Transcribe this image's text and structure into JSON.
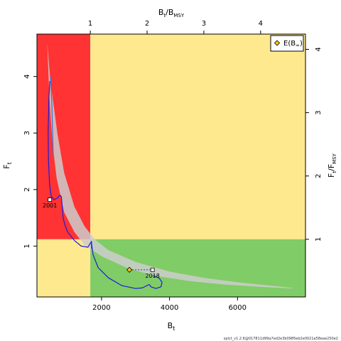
{
  "chart_data": {
    "type": "line",
    "title": "",
    "xlabel": {
      "main": "B",
      "sub": "t"
    },
    "ylabel": {
      "main": "F",
      "sub": "t"
    },
    "top_axis_label": {
      "main": "B",
      "sub": "t",
      "sep": "/",
      "main2": "B",
      "sub2": "MSY"
    },
    "right_axis_label": {
      "main": "F",
      "sub": "t",
      "sep": "/",
      "main2": "F",
      "sub2": "MSY"
    },
    "xlim": [
      100,
      8000
    ],
    "ylim": [
      0.1,
      4.75
    ],
    "x_ticks": [
      2000,
      4000,
      6000
    ],
    "x_tick_labels": [
      "2000",
      "4000",
      "6000"
    ],
    "y_ticks": [
      1,
      2,
      3,
      4
    ],
    "y_tick_labels": [
      "1",
      "2",
      "3",
      "4"
    ],
    "top_ticks_ratio": [
      1,
      2,
      3,
      4
    ],
    "top_tick_labels": [
      "1",
      "2",
      "3",
      "4"
    ],
    "right_ticks_ratio": [
      1,
      2,
      3,
      4
    ],
    "right_tick_labels": [
      "1",
      "2",
      "3",
      "4"
    ],
    "bmsy": 1670,
    "fmsy": 1.12,
    "zone_colors": {
      "red": "#ff3333",
      "yellow": "#ffe98f",
      "green": "#80cc66"
    },
    "ci_band": {
      "color": "#cccccc",
      "upper": [
        [
          400,
          4.6
        ],
        [
          500,
          3.9
        ],
        [
          700,
          3.0
        ],
        [
          900,
          2.3
        ],
        [
          1200,
          1.7
        ],
        [
          1500,
          1.35
        ],
        [
          1800,
          1.12
        ],
        [
          2200,
          0.93
        ],
        [
          3000,
          0.72
        ],
        [
          4000,
          0.55
        ],
        [
          5000,
          0.44
        ],
        [
          6000,
          0.36
        ],
        [
          7000,
          0.3
        ],
        [
          7600,
          0.26
        ]
      ],
      "lower": [
        [
          400,
          4.6
        ],
        [
          470,
          3.6
        ],
        [
          560,
          2.8
        ],
        [
          680,
          2.2
        ],
        [
          900,
          1.6
        ],
        [
          1200,
          1.25
        ],
        [
          1500,
          1.02
        ],
        [
          2000,
          0.82
        ],
        [
          2800,
          0.6
        ],
        [
          3600,
          0.47
        ],
        [
          4600,
          0.38
        ],
        [
          5600,
          0.32
        ],
        [
          6600,
          0.28
        ],
        [
          7600,
          0.25
        ]
      ]
    },
    "series": [
      {
        "color": "#1c1cdb",
        "points": [
          [
            480,
            3.92
          ],
          [
            450,
            3.6
          ],
          [
            430,
            3.0
          ],
          [
            440,
            2.5
          ],
          [
            470,
            2.1
          ],
          [
            520,
            1.88
          ],
          [
            600,
            1.82
          ],
          [
            700,
            1.85
          ],
          [
            780,
            1.9
          ],
          [
            820,
            1.87
          ],
          [
            830,
            1.8
          ],
          [
            870,
            1.5
          ],
          [
            920,
            1.38
          ],
          [
            1000,
            1.25
          ],
          [
            1200,
            1.1
          ],
          [
            1400,
            1.0
          ],
          [
            1600,
            0.98
          ],
          [
            1700,
            1.08
          ],
          [
            1750,
            0.85
          ],
          [
            1900,
            0.62
          ],
          [
            2200,
            0.44
          ],
          [
            2600,
            0.3
          ],
          [
            3000,
            0.25
          ],
          [
            3200,
            0.26
          ],
          [
            3300,
            0.29
          ],
          [
            3400,
            0.32
          ],
          [
            3420,
            0.31
          ],
          [
            3450,
            0.28
          ],
          [
            3600,
            0.25
          ],
          [
            3750,
            0.28
          ],
          [
            3780,
            0.36
          ],
          [
            3700,
            0.43
          ],
          [
            3600,
            0.46
          ],
          [
            3500,
            0.48
          ]
        ]
      },
      {
        "color": "#3a6fd8",
        "points": [
          [
            500,
            4.0
          ],
          [
            540,
            3.5
          ],
          [
            560,
            3.0
          ],
          [
            580,
            2.6
          ]
        ]
      },
      {
        "color": "#1c1cdb",
        "points": [
          [
            1700,
            1.09
          ],
          [
            1710,
            0.95
          ]
        ]
      }
    ],
    "point_labels": [
      {
        "year": "2001",
        "x": 480,
        "y": 1.82,
        "label_offset": [
          0,
          8
        ]
      },
      {
        "year": "2018",
        "x": 3500,
        "y": 0.58,
        "label_offset": [
          0,
          8
        ]
      }
    ],
    "expected_biomass": {
      "x": 2820,
      "y": 0.58,
      "color": "#ffcc00"
    },
    "dashed_link": {
      "x1": 2820,
      "x2": 3500,
      "y": 0.58
    },
    "legend": {
      "position": "top-right",
      "entries": [
        {
          "label_main": "E(B",
          "label_sub": "∞",
          "label_tail": ")"
        }
      ]
    },
    "footer_text": "spict_v1.2.6@017811d99a7ed2e3b0985eb2e0021a58eae250e2"
  }
}
